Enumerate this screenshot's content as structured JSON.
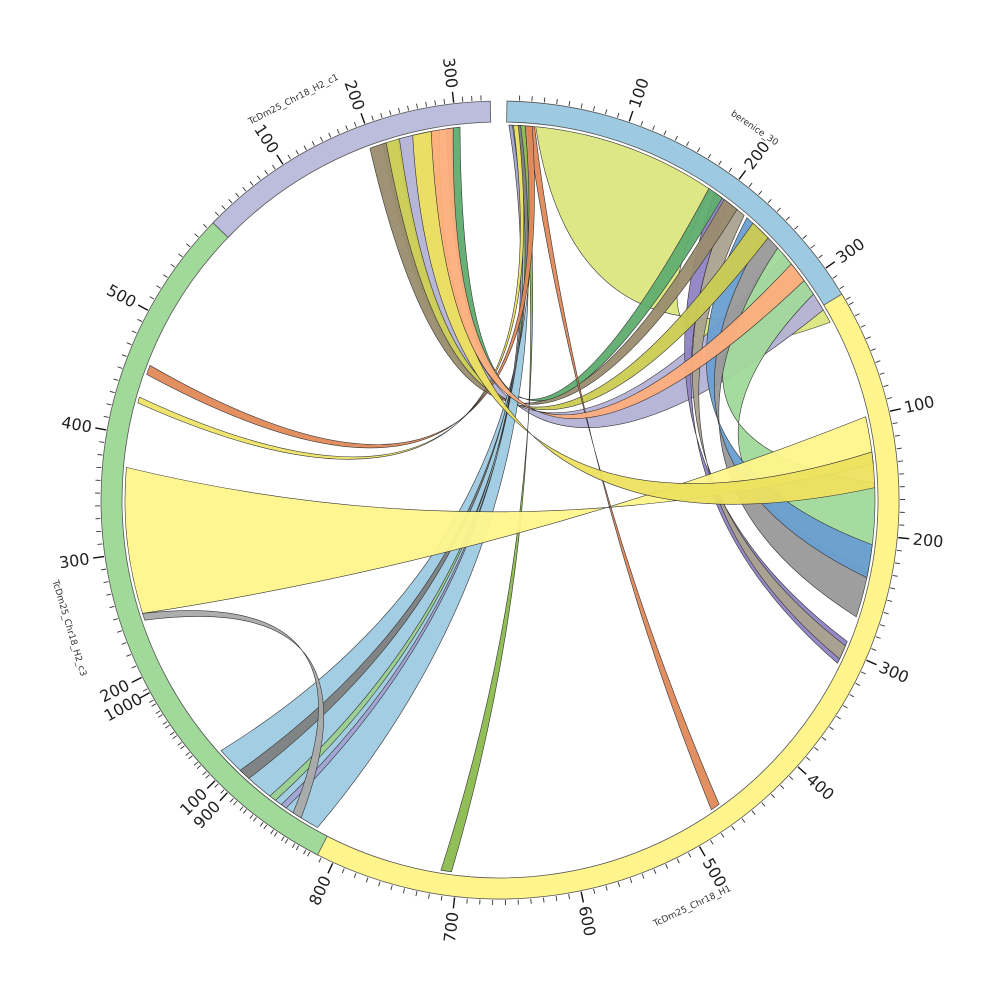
{
  "diagram": {
    "type": "circos",
    "segments": [
      {
        "id": "berenice",
        "name": "berenice_30",
        "length": 340,
        "color": "#9ecae1",
        "ticks": [
          "100",
          "200",
          "300"
        ]
      },
      {
        "id": "h1",
        "name": "TcDm25_Chr18_H1",
        "length": 1010,
        "color": "#fff58c",
        "ticks": [
          "100",
          "200",
          "300",
          "400",
          "500",
          "600",
          "700",
          "800",
          "900",
          "1000"
        ]
      },
      {
        "id": "c3",
        "name": "TcDm25_Chr18_H2_c3",
        "length": 590,
        "color": "#a1d99b",
        "ticks": [
          "100",
          "200",
          "300",
          "400",
          "500"
        ]
      },
      {
        "id": "c1",
        "name": "TcDm25_Chr18_H2_c1",
        "length": 340,
        "color": "#bcbddc",
        "ticks": [
          "100",
          "200",
          "300"
        ]
      }
    ],
    "links": [
      {
        "a": {
          "seg": "berenice",
          "s": 25,
          "e": 185
        },
        "b": {
          "seg": "berenice",
          "s": 318,
          "e": 340
        },
        "color": "#dce67e"
      },
      {
        "a": {
          "seg": "berenice",
          "s": 270,
          "e": 328
        },
        "b": {
          "seg": "c1",
          "s": 230,
          "e": 272
        },
        "color": "#b4b2d6"
      },
      {
        "a": {
          "seg": "berenice",
          "s": 262,
          "e": 312
        },
        "b": {
          "seg": "h1",
          "s": 156,
          "e": 230
        },
        "color": "#a1d99b"
      },
      {
        "a": {
          "seg": "berenice",
          "s": 245,
          "e": 262
        },
        "b": {
          "seg": "h1",
          "s": 230,
          "e": 270
        },
        "color": "#999999"
      },
      {
        "a": {
          "seg": "berenice",
          "s": 225,
          "e": 245
        },
        "b": {
          "seg": "h1",
          "s": 208,
          "e": 236
        },
        "color": "#6a9fd1"
      },
      {
        "a": {
          "seg": "berenice",
          "s": 190,
          "e": 205
        },
        "b": {
          "seg": "h1",
          "s": 292,
          "e": 312
        },
        "color": "#8f84c4"
      },
      {
        "a": {
          "seg": "berenice",
          "s": 205,
          "e": 222
        },
        "b": {
          "seg": "h1",
          "s": 296,
          "e": 308
        },
        "color": "#aaa28f"
      },
      {
        "a": {
          "seg": "berenice",
          "s": 232,
          "e": 250
        },
        "b": {
          "seg": "c1",
          "s": 212,
          "e": 232
        },
        "color": "#cbcc52"
      },
      {
        "a": {
          "seg": "berenice",
          "s": 200,
          "e": 214
        },
        "b": {
          "seg": "c1",
          "s": 196,
          "e": 216
        },
        "color": "#9a8c6e"
      },
      {
        "a": {
          "seg": "berenice",
          "s": 184,
          "e": 198
        },
        "b": {
          "seg": "c1",
          "s": 288,
          "e": 304
        },
        "color": "#5fad6f"
      },
      {
        "a": {
          "seg": "berenice",
          "s": 10,
          "e": 18
        },
        "b": {
          "seg": "h1",
          "s": 824,
          "e": 928
        },
        "color": "#9ecae1"
      },
      {
        "a": {
          "seg": "berenice",
          "s": 18,
          "e": 24
        },
        "b": {
          "seg": "h1",
          "s": 468,
          "e": 476
        },
        "color": "#e0895a"
      },
      {
        "a": {
          "seg": "berenice",
          "s": 12,
          "e": 16
        },
        "b": {
          "seg": "h1",
          "s": 705,
          "e": 714
        },
        "color": "#8cba4f"
      },
      {
        "a": {
          "seg": "berenice",
          "s": 8,
          "e": 12
        },
        "b": {
          "seg": "h1",
          "s": 895,
          "e": 905
        },
        "color": "#7f7f7f"
      },
      {
        "a": {
          "seg": "berenice",
          "s": 4,
          "e": 8
        },
        "b": {
          "seg": "h1",
          "s": 866,
          "e": 872
        },
        "color": "#9bcf8f"
      },
      {
        "a": {
          "seg": "berenice",
          "s": 2,
          "e": 5
        },
        "b": {
          "seg": "h1",
          "s": 855,
          "e": 860
        },
        "color": "#a3a3d4"
      },
      {
        "a": {
          "seg": "berenice",
          "s": 16,
          "e": 22
        },
        "b": {
          "seg": "c3",
          "s": 452,
          "e": 460
        },
        "color": "#e0895a"
      },
      {
        "a": {
          "seg": "berenice",
          "s": 6,
          "e": 10
        },
        "b": {
          "seg": "c3",
          "s": 427,
          "e": 432
        },
        "color": "#eee466"
      },
      {
        "a": {
          "seg": "c3",
          "s": 248,
          "e": 372
        },
        "b": {
          "seg": "h1",
          "s": 100,
          "e": 140
        },
        "color": "#fff58c"
      },
      {
        "a": {
          "seg": "c3",
          "s": 242,
          "e": 248
        },
        "b": {
          "seg": "h1",
          "s": 840,
          "e": 848
        },
        "color": "#aaaaaa"
      },
      {
        "a": {
          "seg": "c1",
          "s": 248,
          "e": 280
        },
        "b": {
          "seg": "h1",
          "s": 130,
          "e": 160
        },
        "color": "#ede05f"
      },
      {
        "a": {
          "seg": "c1",
          "s": 270,
          "e": 296
        },
        "b": {
          "seg": "berenice",
          "s": 280,
          "e": 298
        },
        "color": "#fdae7c"
      }
    ]
  }
}
